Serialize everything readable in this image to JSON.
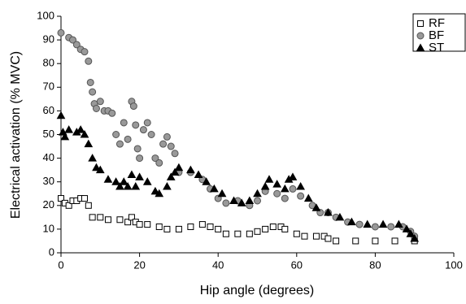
{
  "chart_data": {
    "type": "scatter",
    "xlabel": "Hip angle (degrees)",
    "ylabel": "Electrical activation (% MVC)",
    "xlim": [
      0,
      100
    ],
    "xticks": [
      0,
      20,
      40,
      60,
      80,
      100
    ],
    "ylim": [
      0,
      100
    ],
    "yticks": [
      0,
      10,
      20,
      30,
      40,
      50,
      60,
      70,
      80,
      90,
      100
    ],
    "legend": "upper right",
    "series": [
      {
        "name": "RF",
        "marker": "square",
        "color": "#ffffff",
        "x": [
          0,
          1,
          2,
          3,
          4,
          5,
          6,
          7,
          8,
          10,
          12,
          15,
          17,
          18,
          19,
          20,
          22,
          25,
          27,
          30,
          33,
          36,
          38,
          40,
          42,
          45,
          48,
          50,
          52,
          54,
          56,
          57,
          60,
          62,
          65,
          67,
          68,
          70,
          75,
          80,
          85,
          90
        ],
        "y": [
          23,
          21,
          20,
          22,
          22,
          23,
          23,
          20,
          15,
          15,
          14,
          14,
          13,
          15,
          13,
          12,
          12,
          11,
          10,
          10,
          11,
          12,
          11,
          10,
          8,
          8,
          8,
          9,
          10,
          11,
          11,
          10,
          8,
          7,
          7,
          7,
          6,
          5,
          5,
          5,
          5,
          5
        ]
      },
      {
        "name": "BF",
        "marker": "circle",
        "color": "#999999",
        "x": [
          0,
          2,
          3,
          4,
          5,
          6,
          7,
          7.5,
          8,
          8.5,
          9,
          10,
          11,
          12,
          13,
          14,
          15,
          16,
          17,
          18,
          18.5,
          19,
          19.5,
          20,
          21,
          22,
          23,
          24,
          25,
          26,
          27,
          28,
          29,
          30,
          33,
          36,
          38,
          40,
          42,
          45,
          48,
          50,
          52,
          55,
          57,
          59,
          61,
          64,
          66,
          68,
          70,
          73,
          76,
          80,
          84,
          87,
          89,
          90
        ],
        "y": [
          93,
          91,
          90,
          88,
          86,
          85,
          81,
          72,
          68,
          63,
          61,
          64,
          60,
          60,
          59,
          50,
          46,
          55,
          48,
          64,
          62,
          54,
          44,
          40,
          52,
          55,
          50,
          40,
          38,
          46,
          49,
          45,
          42,
          34,
          34,
          31,
          27,
          23,
          21,
          22,
          20,
          22,
          26,
          25,
          23,
          27,
          24,
          20,
          17,
          17,
          15,
          13,
          12,
          11,
          11,
          11,
          9,
          7
        ]
      },
      {
        "name": "ST",
        "marker": "triangle",
        "color": "#000000",
        "x": [
          0,
          0.5,
          1,
          2,
          4,
          5,
          6,
          7,
          8,
          9,
          10,
          12,
          14,
          15,
          16,
          17,
          18,
          19,
          20,
          22,
          24,
          25,
          27,
          28,
          29,
          30,
          33,
          35,
          37,
          39,
          41,
          44,
          46,
          48,
          50,
          52,
          53,
          55,
          57,
          58,
          59,
          61,
          63,
          65,
          68,
          71,
          74,
          78,
          82,
          86,
          88,
          89,
          90
        ],
        "y": [
          58,
          51,
          49,
          52,
          51,
          52,
          50,
          46,
          40,
          36,
          35,
          31,
          30,
          28,
          30,
          28,
          33,
          28,
          32,
          30,
          26,
          25,
          28,
          32,
          34,
          36,
          35,
          33,
          30,
          27,
          25,
          22,
          21,
          22,
          25,
          28,
          31,
          29,
          27,
          31,
          32,
          28,
          23,
          19,
          17,
          15,
          13,
          12,
          12,
          12,
          10,
          8,
          6
        ]
      }
    ]
  }
}
